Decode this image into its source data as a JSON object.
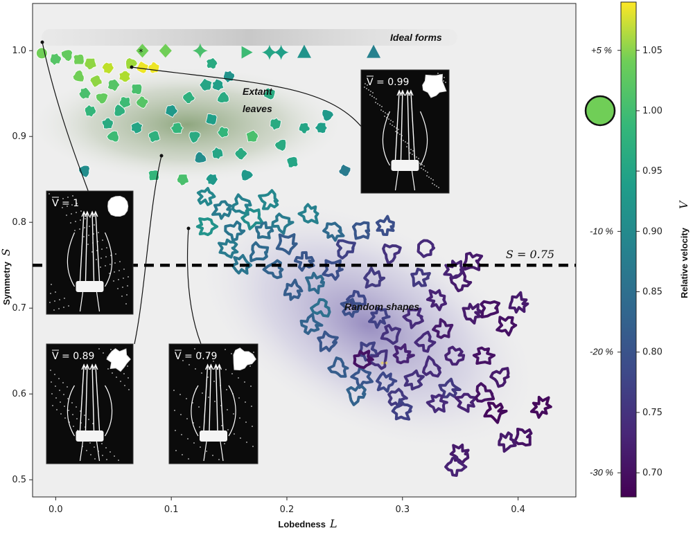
{
  "chart_data": {
    "type": "scatter",
    "xlabel": "Lobedness",
    "xlabel_symbol": "L",
    "ylabel": "Symmetry",
    "ylabel_symbol": "S",
    "xlim": [
      -0.02,
      0.45
    ],
    "ylim": [
      0.48,
      1.055
    ],
    "x_ticks": [
      "0.0",
      "0.1",
      "0.2",
      "0.3",
      "0.4"
    ],
    "y_ticks": [
      "0.5",
      "0.6",
      "0.7",
      "0.8",
      "0.9",
      "1.0"
    ],
    "threshold": {
      "y": 0.75,
      "label": "S = 0.75"
    },
    "annotations": [
      "Ideal forms",
      "Extant",
      "leaves",
      "Random shapes",
      "*",
      "**"
    ],
    "colorbar": {
      "label": "Relative velocity",
      "symbol": "V",
      "range": [
        0.68,
        1.09
      ],
      "ticks": [
        "0.70",
        "0.75",
        "0.80",
        "0.85",
        "0.90",
        "0.95",
        "1.00",
        "1.05"
      ],
      "percent_marks": [
        {
          "v": 1.05,
          "label": "+5 %"
        },
        {
          "v": 0.9,
          "label": "-10 %"
        },
        {
          "v": 0.8,
          "label": "-20 %"
        },
        {
          "v": 0.7,
          "label": "-30 %"
        }
      ],
      "reference": {
        "v": 1.0,
        "shape": "circle"
      },
      "colormap": "viridis"
    },
    "insets": [
      {
        "label": "V = 1",
        "point": [
          -0.01,
          0.995
        ]
      },
      {
        "label": "V = 0.99",
        "point": [
          0.065,
          0.97
        ]
      },
      {
        "label": "V = 0.89",
        "point": [
          0.09,
          0.87
        ]
      },
      {
        "label": "V = 0.79",
        "point": [
          0.115,
          0.785
        ]
      }
    ],
    "series": [
      {
        "name": "Ideal forms",
        "points": [
          {
            "x": -0.012,
            "y": 0.997,
            "v": 1.0
          },
          {
            "x": 0.075,
            "y": 1.0,
            "v": 1.0
          },
          {
            "x": 0.095,
            "y": 1.0,
            "v": 1.0
          },
          {
            "x": 0.125,
            "y": 1.0,
            "v": 0.97
          },
          {
            "x": 0.165,
            "y": 0.998,
            "v": 0.96
          },
          {
            "x": 0.185,
            "y": 0.998,
            "v": 0.92
          },
          {
            "x": 0.195,
            "y": 0.998,
            "v": 0.91
          },
          {
            "x": 0.215,
            "y": 0.998,
            "v": 0.89
          },
          {
            "x": 0.275,
            "y": 0.998,
            "v": 0.86
          }
        ]
      },
      {
        "name": "Extant leaves",
        "points": [
          {
            "x": 0.0,
            "y": 0.99,
            "v": 0.98
          },
          {
            "x": 0.01,
            "y": 0.995,
            "v": 0.99
          },
          {
            "x": 0.02,
            "y": 0.99,
            "v": 1.0
          },
          {
            "x": 0.03,
            "y": 0.985,
            "v": 1.02
          },
          {
            "x": 0.045,
            "y": 0.98,
            "v": 1.05
          },
          {
            "x": 0.065,
            "y": 0.985,
            "v": 1.03
          },
          {
            "x": 0.075,
            "y": 0.98,
            "v": 1.08
          },
          {
            "x": 0.085,
            "y": 0.98,
            "v": 1.08
          },
          {
            "x": 0.06,
            "y": 0.97,
            "v": 1.04
          },
          {
            "x": 0.02,
            "y": 0.97,
            "v": 1.0
          },
          {
            "x": 0.035,
            "y": 0.965,
            "v": 1.02
          },
          {
            "x": 0.05,
            "y": 0.96,
            "v": 0.98
          },
          {
            "x": 0.025,
            "y": 0.95,
            "v": 0.97
          },
          {
            "x": 0.04,
            "y": 0.945,
            "v": 0.99
          },
          {
            "x": 0.07,
            "y": 0.955,
            "v": 0.97
          },
          {
            "x": 0.06,
            "y": 0.94,
            "v": 0.96
          },
          {
            "x": 0.03,
            "y": 0.93,
            "v": 0.95
          },
          {
            "x": 0.055,
            "y": 0.93,
            "v": 0.94
          },
          {
            "x": 0.075,
            "y": 0.94,
            "v": 0.98
          },
          {
            "x": 0.045,
            "y": 0.915,
            "v": 0.93
          },
          {
            "x": 0.07,
            "y": 0.91,
            "v": 0.92
          },
          {
            "x": 0.05,
            "y": 0.9,
            "v": 0.96
          },
          {
            "x": 0.085,
            "y": 0.9,
            "v": 0.94
          },
          {
            "x": 0.1,
            "y": 0.93,
            "v": 0.9
          },
          {
            "x": 0.105,
            "y": 0.91,
            "v": 0.95
          },
          {
            "x": 0.12,
            "y": 0.9,
            "v": 0.93
          },
          {
            "x": 0.135,
            "y": 0.92,
            "v": 0.91
          },
          {
            "x": 0.145,
            "y": 0.905,
            "v": 0.95
          },
          {
            "x": 0.14,
            "y": 0.88,
            "v": 0.92
          },
          {
            "x": 0.125,
            "y": 0.875,
            "v": 0.88
          },
          {
            "x": 0.16,
            "y": 0.88,
            "v": 0.93
          },
          {
            "x": 0.17,
            "y": 0.9,
            "v": 0.97
          },
          {
            "x": 0.19,
            "y": 0.915,
            "v": 0.93
          },
          {
            "x": 0.195,
            "y": 0.89,
            "v": 0.93
          },
          {
            "x": 0.205,
            "y": 0.87,
            "v": 0.92
          },
          {
            "x": 0.215,
            "y": 0.91,
            "v": 0.92
          },
          {
            "x": 0.23,
            "y": 0.91,
            "v": 0.91
          },
          {
            "x": 0.235,
            "y": 0.925,
            "v": 0.9
          },
          {
            "x": 0.185,
            "y": 0.95,
            "v": 0.93
          },
          {
            "x": 0.13,
            "y": 0.96,
            "v": 0.92
          },
          {
            "x": 0.14,
            "y": 0.96,
            "v": 0.91
          },
          {
            "x": 0.145,
            "y": 0.945,
            "v": 0.93
          },
          {
            "x": 0.115,
            "y": 0.945,
            "v": 0.94
          },
          {
            "x": 0.135,
            "y": 0.985,
            "v": 0.93
          },
          {
            "x": 0.15,
            "y": 0.97,
            "v": 0.89
          },
          {
            "x": 0.025,
            "y": 0.86,
            "v": 0.88
          },
          {
            "x": 0.085,
            "y": 0.855,
            "v": 0.95
          },
          {
            "x": 0.11,
            "y": 0.85,
            "v": 0.97
          },
          {
            "x": 0.135,
            "y": 0.85,
            "v": 0.9
          },
          {
            "x": 0.165,
            "y": 0.855,
            "v": 0.9
          },
          {
            "x": 0.25,
            "y": 0.86,
            "v": 0.85
          }
        ]
      },
      {
        "name": "Random shapes",
        "points": [
          {
            "x": 0.13,
            "y": 0.83,
            "v": 0.87
          },
          {
            "x": 0.145,
            "y": 0.815,
            "v": 0.85
          },
          {
            "x": 0.16,
            "y": 0.82,
            "v": 0.86
          },
          {
            "x": 0.17,
            "y": 0.805,
            "v": 0.88
          },
          {
            "x": 0.13,
            "y": 0.795,
            "v": 0.89
          },
          {
            "x": 0.155,
            "y": 0.79,
            "v": 0.84
          },
          {
            "x": 0.18,
            "y": 0.79,
            "v": 0.83
          },
          {
            "x": 0.15,
            "y": 0.77,
            "v": 0.85
          },
          {
            "x": 0.175,
            "y": 0.765,
            "v": 0.82
          },
          {
            "x": 0.2,
            "y": 0.775,
            "v": 0.8
          },
          {
            "x": 0.16,
            "y": 0.75,
            "v": 0.84
          },
          {
            "x": 0.19,
            "y": 0.745,
            "v": 0.81
          },
          {
            "x": 0.215,
            "y": 0.755,
            "v": 0.79
          },
          {
            "x": 0.225,
            "y": 0.73,
            "v": 0.82
          },
          {
            "x": 0.25,
            "y": 0.77,
            "v": 0.76
          },
          {
            "x": 0.24,
            "y": 0.745,
            "v": 0.78
          },
          {
            "x": 0.205,
            "y": 0.72,
            "v": 0.8
          },
          {
            "x": 0.23,
            "y": 0.7,
            "v": 0.83
          },
          {
            "x": 0.26,
            "y": 0.71,
            "v": 0.77
          },
          {
            "x": 0.275,
            "y": 0.735,
            "v": 0.75
          },
          {
            "x": 0.29,
            "y": 0.765,
            "v": 0.74
          },
          {
            "x": 0.265,
            "y": 0.79,
            "v": 0.79
          },
          {
            "x": 0.285,
            "y": 0.795,
            "v": 0.78
          },
          {
            "x": 0.32,
            "y": 0.77,
            "v": 0.73
          },
          {
            "x": 0.195,
            "y": 0.8,
            "v": 0.85
          },
          {
            "x": 0.22,
            "y": 0.81,
            "v": 0.86
          },
          {
            "x": 0.24,
            "y": 0.79,
            "v": 0.82
          },
          {
            "x": 0.185,
            "y": 0.825,
            "v": 0.87
          },
          {
            "x": 0.255,
            "y": 0.7,
            "v": 0.78
          },
          {
            "x": 0.28,
            "y": 0.69,
            "v": 0.76
          },
          {
            "x": 0.29,
            "y": 0.67,
            "v": 0.74
          },
          {
            "x": 0.31,
            "y": 0.69,
            "v": 0.73
          },
          {
            "x": 0.33,
            "y": 0.71,
            "v": 0.72
          },
          {
            "x": 0.35,
            "y": 0.73,
            "v": 0.71
          },
          {
            "x": 0.315,
            "y": 0.735,
            "v": 0.75
          },
          {
            "x": 0.345,
            "y": 0.745,
            "v": 0.72
          },
          {
            "x": 0.36,
            "y": 0.755,
            "v": 0.71
          },
          {
            "x": 0.27,
            "y": 0.65,
            "v": 0.76
          },
          {
            "x": 0.3,
            "y": 0.645,
            "v": 0.72
          },
          {
            "x": 0.32,
            "y": 0.66,
            "v": 0.73
          },
          {
            "x": 0.335,
            "y": 0.675,
            "v": 0.71
          },
          {
            "x": 0.36,
            "y": 0.695,
            "v": 0.71
          },
          {
            "x": 0.375,
            "y": 0.7,
            "v": 0.7
          },
          {
            "x": 0.39,
            "y": 0.68,
            "v": 0.7
          },
          {
            "x": 0.4,
            "y": 0.705,
            "v": 0.71
          },
          {
            "x": 0.245,
            "y": 0.63,
            "v": 0.8
          },
          {
            "x": 0.265,
            "y": 0.62,
            "v": 0.79
          },
          {
            "x": 0.285,
            "y": 0.615,
            "v": 0.77
          },
          {
            "x": 0.26,
            "y": 0.6,
            "v": 0.81
          },
          {
            "x": 0.295,
            "y": 0.595,
            "v": 0.75
          },
          {
            "x": 0.31,
            "y": 0.615,
            "v": 0.74
          },
          {
            "x": 0.325,
            "y": 0.63,
            "v": 0.73
          },
          {
            "x": 0.345,
            "y": 0.645,
            "v": 0.72
          },
          {
            "x": 0.37,
            "y": 0.645,
            "v": 0.7
          },
          {
            "x": 0.385,
            "y": 0.62,
            "v": 0.71
          },
          {
            "x": 0.34,
            "y": 0.605,
            "v": 0.75
          },
          {
            "x": 0.355,
            "y": 0.59,
            "v": 0.72
          },
          {
            "x": 0.37,
            "y": 0.6,
            "v": 0.7
          },
          {
            "x": 0.38,
            "y": 0.58,
            "v": 0.69
          },
          {
            "x": 0.33,
            "y": 0.59,
            "v": 0.73
          },
          {
            "x": 0.28,
            "y": 0.64,
            "v": 0.74
          },
          {
            "x": 0.22,
            "y": 0.68,
            "v": 0.81
          },
          {
            "x": 0.235,
            "y": 0.66,
            "v": 0.79
          },
          {
            "x": 0.42,
            "y": 0.585,
            "v": 0.69
          },
          {
            "x": 0.405,
            "y": 0.55,
            "v": 0.7
          },
          {
            "x": 0.39,
            "y": 0.545,
            "v": 0.71
          },
          {
            "x": 0.35,
            "y": 0.53,
            "v": 0.71
          },
          {
            "x": 0.345,
            "y": 0.515,
            "v": 0.72
          },
          {
            "x": 0.3,
            "y": 0.58,
            "v": 0.76
          },
          {
            "x": 0.265,
            "y": 0.64,
            "v": 0.7
          }
        ]
      }
    ]
  }
}
